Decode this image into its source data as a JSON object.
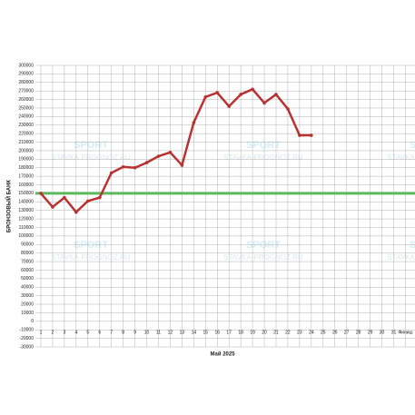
{
  "chart_data": {
    "type": "line",
    "y_label": "БРОНЗОВЫЙ БАНК",
    "x_label": "Май 2025",
    "categories": [
      "1",
      "2",
      "3",
      "4",
      "5",
      "6",
      "7",
      "8",
      "9",
      "10",
      "11",
      "12",
      "13",
      "14",
      "15",
      "16",
      "17",
      "18",
      "19",
      "20",
      "21",
      "22",
      "23",
      "24",
      "25",
      "26",
      "27",
      "28",
      "29",
      "30",
      "31",
      "Финиш"
    ],
    "series": [
      {
        "color": "#b83232",
        "values": [
          150000,
          134000,
          145000,
          128000,
          141000,
          145000,
          174000,
          181000,
          180000,
          186000,
          193500,
          198000,
          183000,
          233000,
          263000,
          268000,
          252000,
          266000,
          272000,
          256000,
          266000,
          249000,
          218000,
          218000,
          null,
          null,
          null,
          null,
          null,
          null,
          null,
          null
        ]
      }
    ],
    "reference_line": {
      "value": 150000,
      "color": "#5cb85c"
    },
    "ylim": [
      -30000,
      300000
    ],
    "yticks": [
      -30000,
      -20000,
      -10000,
      0,
      10000,
      20000,
      30000,
      40000,
      50000,
      60000,
      70000,
      80000,
      90000,
      100000,
      110000,
      120000,
      130000,
      140000,
      150000,
      160000,
      170000,
      180000,
      190000,
      200000,
      210000,
      220000,
      230000,
      240000,
      250000,
      260000,
      270000,
      280000,
      290000,
      300000
    ],
    "grid": true,
    "watermark": {
      "brand": "SPORT",
      "site": "STAVKA-PROGNOZ.RU"
    }
  }
}
